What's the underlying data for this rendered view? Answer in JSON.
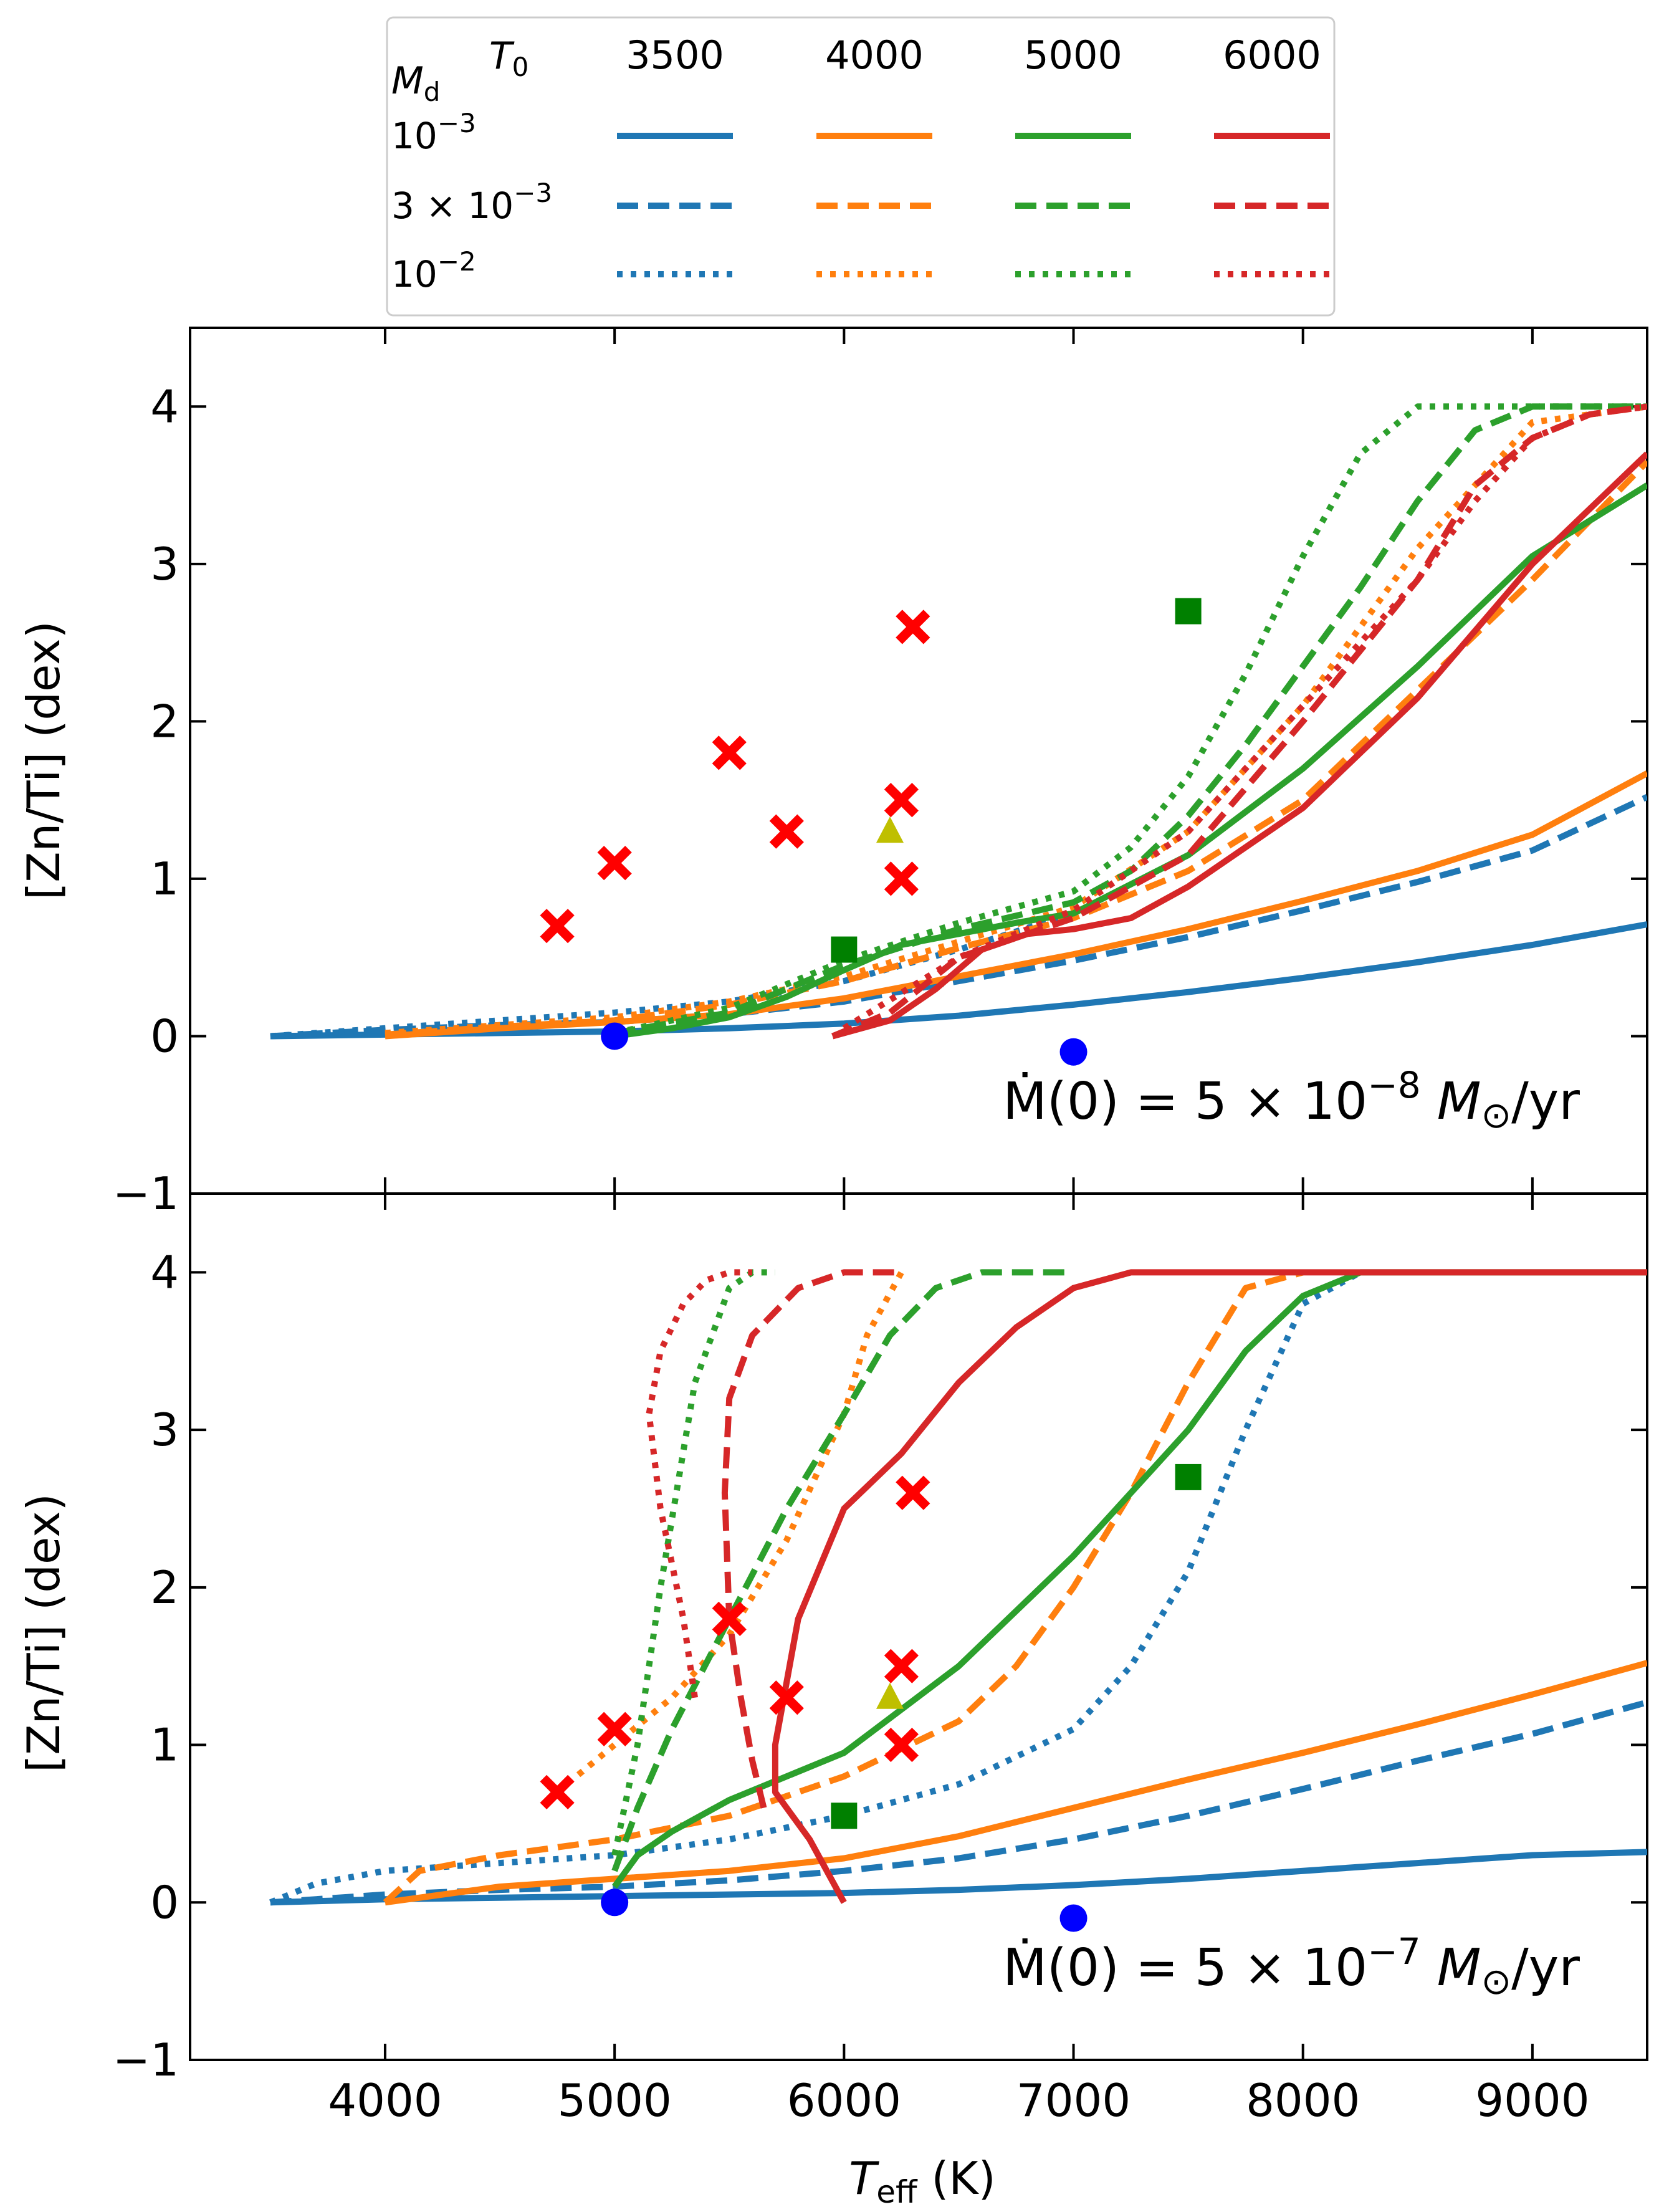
{
  "legend": {
    "header_md": "M",
    "header_md_sub": "d",
    "header_t0": "T",
    "header_t0_sub": "0",
    "columns": [
      "3500",
      "4000",
      "5000",
      "6000"
    ],
    "rows": [
      {
        "label_base": "10",
        "label_sup": "−3",
        "dash": "solid"
      },
      {
        "label_base": "3 × 10",
        "label_sup": "−3",
        "dash": "dashed"
      },
      {
        "label_base": "10",
        "label_sup": "−2",
        "dash": "dotted"
      }
    ],
    "colors": [
      "#1f77b4",
      "#ff7f0e",
      "#2ca02c",
      "#d62728"
    ]
  },
  "axes": {
    "xlabel_main": "T",
    "xlabel_sub": "eff",
    "xlabel_unit": " (K)",
    "ylabel": "[Zn/Ti] (dex)",
    "xticks": [
      "4000",
      "5000",
      "6000",
      "7000",
      "8000",
      "9000"
    ],
    "yticks": [
      "−1",
      "0",
      "1",
      "2",
      "3",
      "4"
    ]
  },
  "chart_data": [
    {
      "type": "line",
      "panel": "top",
      "annotation": {
        "lhs": "Ṁ(0) = 5 × 10",
        "exp": "−8",
        "rhs": " M",
        "rhs_sub": "⊙",
        "tail": "/yr"
      },
      "xlim": [
        3150,
        9500
      ],
      "ylim": [
        -1,
        4.5
      ],
      "series": [
        {
          "color": "#1f77b4",
          "dash": "solid",
          "x": [
            3500,
            4000,
            4500,
            5000,
            5500,
            6000,
            6500,
            7000,
            7500,
            8000,
            8500,
            9000,
            9500
          ],
          "y": [
            0,
            0.01,
            0.02,
            0.03,
            0.05,
            0.08,
            0.13,
            0.2,
            0.28,
            0.37,
            0.47,
            0.58,
            0.71
          ]
        },
        {
          "color": "#1f77b4",
          "dash": "dashed",
          "x": [
            3500,
            4000,
            4500,
            5000,
            5500,
            6000,
            6500,
            7000,
            7500,
            8000,
            8500,
            9000,
            9500
          ],
          "y": [
            0,
            0.04,
            0.07,
            0.09,
            0.14,
            0.22,
            0.35,
            0.48,
            0.63,
            0.8,
            0.98,
            1.18,
            1.52
          ]
        },
        {
          "color": "#1f77b4",
          "dash": "dotted",
          "x": [
            3500,
            4000,
            4500,
            5000,
            5500,
            6000,
            6500,
            7000
          ],
          "y": [
            0,
            0.05,
            0.1,
            0.15,
            0.22,
            0.35,
            0.55,
            0.78
          ]
        },
        {
          "color": "#ff7f0e",
          "dash": "solid",
          "x": [
            4000,
            4500,
            5000,
            5500,
            6000,
            6500,
            7000,
            7500,
            8000,
            8500,
            9000,
            9500
          ],
          "y": [
            0,
            0.05,
            0.09,
            0.14,
            0.24,
            0.38,
            0.52,
            0.68,
            0.86,
            1.05,
            1.28,
            1.67
          ]
        },
        {
          "color": "#ff7f0e",
          "dash": "dashed",
          "x": [
            4000,
            4500,
            5000,
            5500,
            6000,
            6500,
            7000,
            7500,
            8000,
            8500,
            9000,
            9500
          ],
          "y": [
            0.01,
            0.06,
            0.1,
            0.2,
            0.35,
            0.56,
            0.75,
            1.05,
            1.5,
            2.2,
            2.9,
            3.65
          ]
        },
        {
          "color": "#ff7f0e",
          "dash": "dotted",
          "x": [
            4000,
            4500,
            5000,
            5500,
            6000,
            6500,
            7000,
            7500,
            8000,
            8500,
            9000,
            9500
          ],
          "y": [
            0.02,
            0.07,
            0.12,
            0.22,
            0.38,
            0.6,
            0.82,
            1.3,
            2.1,
            3.1,
            3.9,
            4.0
          ]
        },
        {
          "color": "#2ca02c",
          "dash": "solid",
          "x": [
            5000,
            5250,
            5500,
            5750,
            6000,
            6250,
            6500,
            6750,
            7000,
            7500,
            8000,
            8500,
            9000,
            9500
          ],
          "y": [
            0,
            0.05,
            0.12,
            0.25,
            0.42,
            0.58,
            0.65,
            0.72,
            0.78,
            1.15,
            1.7,
            2.35,
            3.05,
            3.5
          ]
        },
        {
          "color": "#2ca02c",
          "dash": "dashed",
          "x": [
            5000,
            5500,
            6000,
            6500,
            7000,
            7250,
            7500,
            7750,
            8000,
            8250,
            8500,
            8750,
            9000,
            9500
          ],
          "y": [
            0.02,
            0.15,
            0.45,
            0.68,
            0.85,
            1.05,
            1.4,
            1.85,
            2.35,
            2.85,
            3.4,
            3.85,
            4.0,
            4.0
          ]
        },
        {
          "color": "#2ca02c",
          "dash": "dotted",
          "x": [
            5000,
            5500,
            6000,
            6500,
            7000,
            7250,
            7500,
            7750,
            8000,
            8250,
            8500,
            8750,
            9000,
            9500
          ],
          "y": [
            0.02,
            0.18,
            0.48,
            0.72,
            0.92,
            1.2,
            1.65,
            2.3,
            3.05,
            3.7,
            4.0,
            4.0,
            4.0,
            4.0
          ]
        },
        {
          "color": "#d62728",
          "dash": "solid",
          "x": [
            5950,
            6200,
            6400,
            6600,
            6800,
            7000,
            7250,
            7500,
            8000,
            8500,
            9000,
            9500
          ],
          "y": [
            0,
            0.1,
            0.3,
            0.55,
            0.65,
            0.68,
            0.75,
            0.95,
            1.45,
            2.15,
            3.0,
            3.7
          ]
        },
        {
          "color": "#d62728",
          "dash": "dashed",
          "x": [
            5950,
            6200,
            6500,
            7000,
            7500,
            8000,
            8500,
            8750,
            9000,
            9250,
            9500
          ],
          "y": [
            0,
            0.15,
            0.5,
            0.75,
            1.15,
            2.0,
            2.9,
            3.5,
            3.8,
            3.95,
            4.0
          ]
        },
        {
          "color": "#d62728",
          "dash": "dotted",
          "x": [
            6000,
            6500,
            7000,
            7500,
            8000,
            8500,
            8750,
            9000,
            9250,
            9500
          ],
          "y": [
            0.05,
            0.5,
            0.8,
            1.3,
            2.1,
            2.9,
            3.4,
            3.8,
            3.95,
            4.0
          ]
        }
      ],
      "markers": [
        {
          "shape": "circle",
          "color": "#0000ff",
          "x": [
            5000,
            7000
          ],
          "y": [
            0,
            -0.1
          ]
        },
        {
          "shape": "x",
          "color": "#ff0000",
          "x": [
            4750,
            5000,
            5500,
            5750,
            6250,
            6250,
            6300
          ],
          "y": [
            0.7,
            1.1,
            1.8,
            1.3,
            1.5,
            1.0,
            2.6
          ]
        },
        {
          "shape": "square",
          "color": "#008000",
          "x": [
            6000,
            7500
          ],
          "y": [
            0.55,
            2.7
          ]
        },
        {
          "shape": "triangle",
          "color": "#bfbf00",
          "x": [
            6200
          ],
          "y": [
            1.3
          ]
        }
      ]
    },
    {
      "type": "line",
      "panel": "bottom",
      "annotation": {
        "lhs": "Ṁ(0) = 5 × 10",
        "exp": "−7",
        "rhs": " M",
        "rhs_sub": "⊙",
        "tail": "/yr"
      },
      "xlim": [
        3150,
        9500
      ],
      "ylim": [
        -1,
        4.5
      ],
      "series": [
        {
          "color": "#1f77b4",
          "dash": "solid",
          "x": [
            3500,
            4000,
            4500,
            5000,
            5500,
            6000,
            6500,
            7000,
            7500,
            8000,
            8500,
            9000,
            9500
          ],
          "y": [
            0,
            0.02,
            0.03,
            0.04,
            0.05,
            0.06,
            0.08,
            0.11,
            0.15,
            0.2,
            0.25,
            0.3,
            0.32
          ]
        },
        {
          "color": "#1f77b4",
          "dash": "dashed",
          "x": [
            3500,
            4000,
            4500,
            5000,
            5500,
            6000,
            6500,
            7000,
            7500,
            8000,
            8500,
            9000,
            9500
          ],
          "y": [
            0,
            0.05,
            0.08,
            0.1,
            0.14,
            0.2,
            0.28,
            0.4,
            0.55,
            0.72,
            0.9,
            1.07,
            1.27
          ]
        },
        {
          "color": "#1f77b4",
          "dash": "dotted",
          "x": [
            3500,
            3700,
            4000,
            4500,
            5000,
            5500,
            6000,
            6500,
            7000,
            7250,
            7500,
            7750,
            8000,
            8250
          ],
          "y": [
            0,
            0.12,
            0.2,
            0.25,
            0.3,
            0.4,
            0.55,
            0.75,
            1.1,
            1.5,
            2.1,
            3.0,
            3.8,
            4.0
          ]
        },
        {
          "color": "#ff7f0e",
          "dash": "solid",
          "x": [
            4000,
            4500,
            5000,
            5500,
            6000,
            6500,
            7000,
            7500,
            8000,
            8500,
            9000,
            9500
          ],
          "y": [
            0,
            0.1,
            0.15,
            0.2,
            0.28,
            0.42,
            0.6,
            0.78,
            0.95,
            1.13,
            1.32,
            1.52
          ]
        },
        {
          "color": "#ff7f0e",
          "dash": "dashed",
          "x": [
            4000,
            4150,
            4500,
            5000,
            5500,
            6000,
            6500,
            6750,
            7000,
            7250,
            7500,
            7750,
            8000
          ],
          "y": [
            0,
            0.2,
            0.3,
            0.4,
            0.55,
            0.8,
            1.15,
            1.5,
            2.0,
            2.6,
            3.3,
            3.9,
            4.0
          ]
        },
        {
          "color": "#ff7f0e",
          "dash": "dotted",
          "x": [
            4750,
            5000,
            5250,
            5500,
            5750,
            6000,
            6100,
            6250
          ],
          "y": [
            0.7,
            1.0,
            1.3,
            1.7,
            2.3,
            3.1,
            3.6,
            4.0
          ]
        },
        {
          "color": "#2ca02c",
          "dash": "solid",
          "x": [
            5000,
            5100,
            5250,
            5500,
            6000,
            6500,
            7000,
            7250,
            7500,
            7750,
            8000,
            8250,
            8500,
            9000,
            9500
          ],
          "y": [
            0.1,
            0.3,
            0.45,
            0.65,
            0.95,
            1.5,
            2.2,
            2.6,
            3.0,
            3.5,
            3.85,
            4.0,
            4.0,
            4.0,
            4.0
          ]
        },
        {
          "color": "#2ca02c",
          "dash": "dashed",
          "x": [
            5000,
            5100,
            5250,
            5500,
            5750,
            6000,
            6200,
            6400,
            6600,
            7000
          ],
          "y": [
            0.2,
            0.6,
            1.1,
            1.8,
            2.5,
            3.1,
            3.6,
            3.9,
            4.0,
            4.0
          ]
        },
        {
          "color": "#2ca02c",
          "dash": "dotted",
          "x": [
            5000,
            5100,
            5200,
            5350,
            5500,
            5600,
            5700
          ],
          "y": [
            0.3,
            1.0,
            2.0,
            3.3,
            3.9,
            4.0,
            4.0
          ]
        },
        {
          "color": "#d62728",
          "dash": "solid",
          "x": [
            6000,
            5850,
            5700,
            5700,
            5800,
            6000,
            6250,
            6500,
            6750,
            7000,
            7250,
            7500,
            9500
          ],
          "y": [
            0,
            0.4,
            0.7,
            1.0,
            1.8,
            2.5,
            2.85,
            3.3,
            3.65,
            3.9,
            4.0,
            4.0,
            4.0
          ]
        },
        {
          "color": "#d62728",
          "dash": "dashed",
          "x": [
            5650,
            5600,
            5550,
            5500,
            5480,
            5500,
            5600,
            5800,
            6000,
            6250
          ],
          "y": [
            0.6,
            0.9,
            1.3,
            1.8,
            2.6,
            3.2,
            3.6,
            3.9,
            4.0,
            4.0
          ]
        },
        {
          "color": "#d62728",
          "dash": "dotted",
          "x": [
            5350,
            5300,
            5200,
            5150,
            5200,
            5300,
            5400,
            5500,
            5600
          ],
          "y": [
            1.3,
            1.8,
            2.5,
            3.1,
            3.5,
            3.8,
            3.95,
            4.0,
            4.0
          ]
        }
      ],
      "markers": [
        {
          "shape": "circle",
          "color": "#0000ff",
          "x": [
            5000,
            7000
          ],
          "y": [
            0,
            -0.1
          ]
        },
        {
          "shape": "x",
          "color": "#ff0000",
          "x": [
            4750,
            5000,
            5500,
            5750,
            6250,
            6250,
            6300
          ],
          "y": [
            0.7,
            1.1,
            1.8,
            1.3,
            1.5,
            1.0,
            2.6
          ]
        },
        {
          "shape": "square",
          "color": "#008000",
          "x": [
            6000,
            7500
          ],
          "y": [
            0.55,
            2.7
          ]
        },
        {
          "shape": "triangle",
          "color": "#bfbf00",
          "x": [
            6200
          ],
          "y": [
            1.3
          ]
        }
      ]
    }
  ]
}
